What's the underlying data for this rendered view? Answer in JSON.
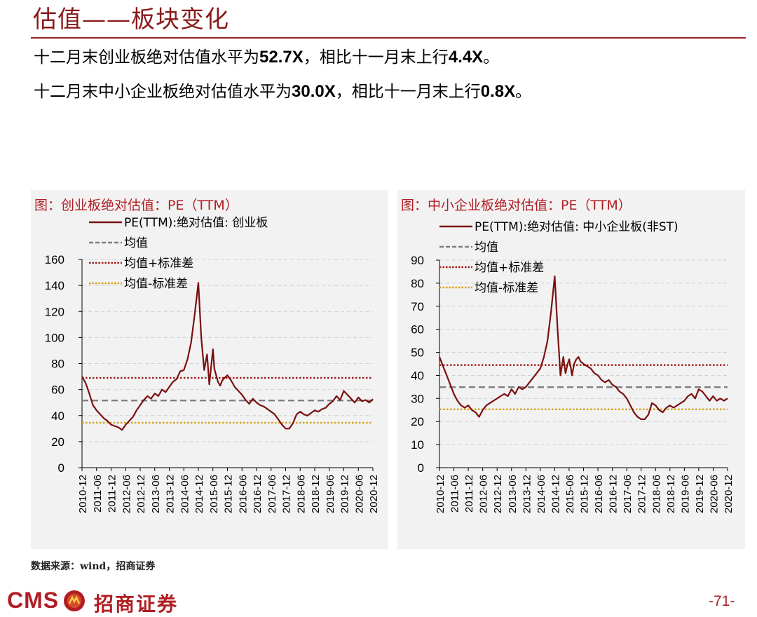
{
  "page": {
    "title": "估值——板块变化",
    "line1": {
      "pre": "十二月末创业板绝对估值水平为",
      "v1": "52.7X",
      "mid": "，相比十一月末上行",
      "v2": "4.4X",
      "post": "。"
    },
    "line2": {
      "pre": "十二月末中小企业板绝对估值水平为",
      "v1": "30.0X",
      "mid": "，相比十一月末上行",
      "v2": "0.8X",
      "post": "。"
    },
    "source": "数据来源：wind，招商证券",
    "logo_text": "CMS",
    "logo_cn": "招商证券",
    "logo_icon": "cms-emblem-icon",
    "page_number": "-71-"
  },
  "colors": {
    "brand": "#b01e23",
    "series": "#7b1010",
    "mean": "#7f7f7f",
    "upper": "#a11c1c",
    "lower": "#d4a017",
    "panel_bg": "#f2f2f2"
  },
  "chart_data": [
    {
      "type": "line",
      "title": "图：创业板绝对估值：PE（TTM）",
      "ylim": [
        0,
        160
      ],
      "yticks": [
        "0",
        "20",
        "40",
        "60",
        "80",
        "100",
        "120",
        "140",
        "160"
      ],
      "xticks": [
        "2010-12",
        "2011-06",
        "2011-12",
        "2012-06",
        "2012-12",
        "2013-06",
        "2013-12",
        "2014-06",
        "2014-12",
        "2015-06",
        "2015-12",
        "2016-06",
        "2016-12",
        "2017-06",
        "2017-12",
        "2018-06",
        "2018-12",
        "2019-06",
        "2019-12",
        "2020-06",
        "2020-12"
      ],
      "grid": true,
      "legend_position": "top",
      "legend": [
        "PE(TTM):绝对估值: 创业板",
        "均值",
        "均值+标准差",
        "均值-标准差"
      ],
      "series": [
        {
          "name": "PE(TTM):绝对估值: 创业板",
          "style": "solid",
          "x": [
            0,
            0.25,
            0.5,
            0.75,
            1,
            1.25,
            1.5,
            1.75,
            2,
            2.25,
            2.5,
            2.75,
            3,
            3.25,
            3.5,
            3.75,
            4,
            4.25,
            4.5,
            4.75,
            5,
            5.25,
            5.5,
            5.75,
            6,
            6.25,
            6.5,
            6.75,
            7,
            7.25,
            7.5,
            7.75,
            8,
            8.2,
            8.4,
            8.6,
            8.75,
            8.9,
            9,
            9.1,
            9.2,
            9.35,
            9.5,
            9.65,
            9.8,
            10,
            10.25,
            10.5,
            10.75,
            11,
            11.25,
            11.5,
            11.75,
            12,
            12.25,
            12.5,
            12.75,
            13,
            13.25,
            13.5,
            13.75,
            14,
            14.25,
            14.5,
            14.75,
            15,
            15.25,
            15.5,
            15.75,
            16,
            16.25,
            16.5,
            16.75,
            17,
            17.25,
            17.5,
            17.75,
            18,
            18.25,
            18.5,
            18.75,
            19,
            19.25,
            19.5,
            19.75,
            20
          ],
          "values": [
            70,
            65,
            57,
            48,
            44,
            41,
            38,
            36,
            33,
            32,
            31,
            29,
            33,
            36,
            39,
            44,
            48,
            52,
            55,
            53,
            57,
            55,
            60,
            58,
            62,
            66,
            68,
            74,
            75,
            83,
            96,
            118,
            142,
            100,
            75,
            87,
            64,
            80,
            91,
            76,
            72,
            66,
            63,
            67,
            69,
            71,
            67,
            62,
            59,
            56,
            52,
            49,
            53,
            50,
            48,
            47,
            45,
            43,
            41,
            37,
            33,
            30,
            30,
            34,
            41,
            43,
            41,
            40,
            42,
            44,
            43,
            45,
            46,
            49,
            51,
            55,
            52,
            59,
            56,
            53,
            50,
            54,
            51,
            52,
            50,
            52.7
          ]
        },
        {
          "name": "均值",
          "style": "dashed",
          "values": [
            51.6,
            51.6
          ]
        },
        {
          "name": "均值+标准差",
          "style": "dotted",
          "values": [
            69,
            69
          ]
        },
        {
          "name": "均值-标准差",
          "style": "dotted",
          "values": [
            34.5,
            34.5
          ]
        }
      ]
    },
    {
      "type": "line",
      "title": "图：中小企业板绝对估值：PE（TTM）",
      "ylim": [
        0,
        90
      ],
      "yticks": [
        "0",
        "10",
        "20",
        "30",
        "40",
        "50",
        "60",
        "70",
        "80",
        "90"
      ],
      "xticks": [
        "2010-12",
        "2011-06",
        "2011-12",
        "2012-06",
        "2012-12",
        "2013-06",
        "2013-12",
        "2014-06",
        "2014-12",
        "2015-06",
        "2015-12",
        "2016-06",
        "2016-12",
        "2017-06",
        "2017-12",
        "2018-06",
        "2018-12",
        "2019-06",
        "2019-12",
        "2020-06",
        "2020-12"
      ],
      "grid": true,
      "legend_position": "top",
      "legend": [
        "PE(TTM):绝对估值: 中小企业板(非ST)",
        "均值",
        "均值+标准差",
        "均值-标准差"
      ],
      "series": [
        {
          "name": "PE(TTM):绝对估值: 中小企业板(非ST)",
          "style": "solid",
          "x": [
            0,
            0.25,
            0.5,
            0.75,
            1,
            1.25,
            1.5,
            1.75,
            2,
            2.25,
            2.5,
            2.75,
            3,
            3.25,
            3.5,
            3.75,
            4,
            4.25,
            4.5,
            4.75,
            5,
            5.25,
            5.5,
            5.75,
            6,
            6.25,
            6.5,
            6.75,
            7,
            7.25,
            7.5,
            7.75,
            8,
            8.2,
            8.4,
            8.6,
            8.75,
            8.9,
            9,
            9.1,
            9.2,
            9.35,
            9.5,
            9.65,
            9.8,
            10,
            10.25,
            10.5,
            10.75,
            11,
            11.25,
            11.5,
            11.75,
            12,
            12.25,
            12.5,
            12.75,
            13,
            13.25,
            13.5,
            13.75,
            14,
            14.25,
            14.5,
            14.75,
            15,
            15.25,
            15.5,
            15.75,
            16,
            16.25,
            16.5,
            16.75,
            17,
            17.25,
            17.5,
            17.75,
            18,
            18.25,
            18.5,
            18.75,
            19,
            19.25,
            19.5,
            19.75,
            20
          ],
          "values": [
            48,
            44,
            40,
            36,
            32,
            29,
            27,
            26,
            27,
            25,
            24,
            22,
            25,
            27,
            28,
            29,
            30,
            31,
            32,
            31,
            34,
            32,
            35,
            34,
            35,
            37,
            39,
            41,
            43,
            48,
            55,
            68,
            83,
            60,
            40,
            48,
            41,
            45,
            47,
            44,
            40,
            45,
            47,
            48,
            46,
            45,
            44,
            43,
            41,
            40,
            38,
            37,
            38,
            36,
            35,
            33,
            32,
            30,
            27,
            24,
            22,
            21,
            21,
            23,
            28,
            27,
            25,
            24,
            26,
            27,
            26,
            27,
            28,
            29,
            31,
            32,
            30,
            34,
            33,
            31,
            29,
            31,
            29,
            30,
            29,
            30.0
          ]
        },
        {
          "name": "均值",
          "style": "dashed",
          "values": [
            34.9,
            34.9
          ]
        },
        {
          "name": "均值+标准差",
          "style": "dotted",
          "values": [
            44.5,
            44.5
          ]
        },
        {
          "name": "均值-标准差",
          "style": "dotted",
          "values": [
            25.3,
            25.3
          ]
        }
      ]
    }
  ]
}
